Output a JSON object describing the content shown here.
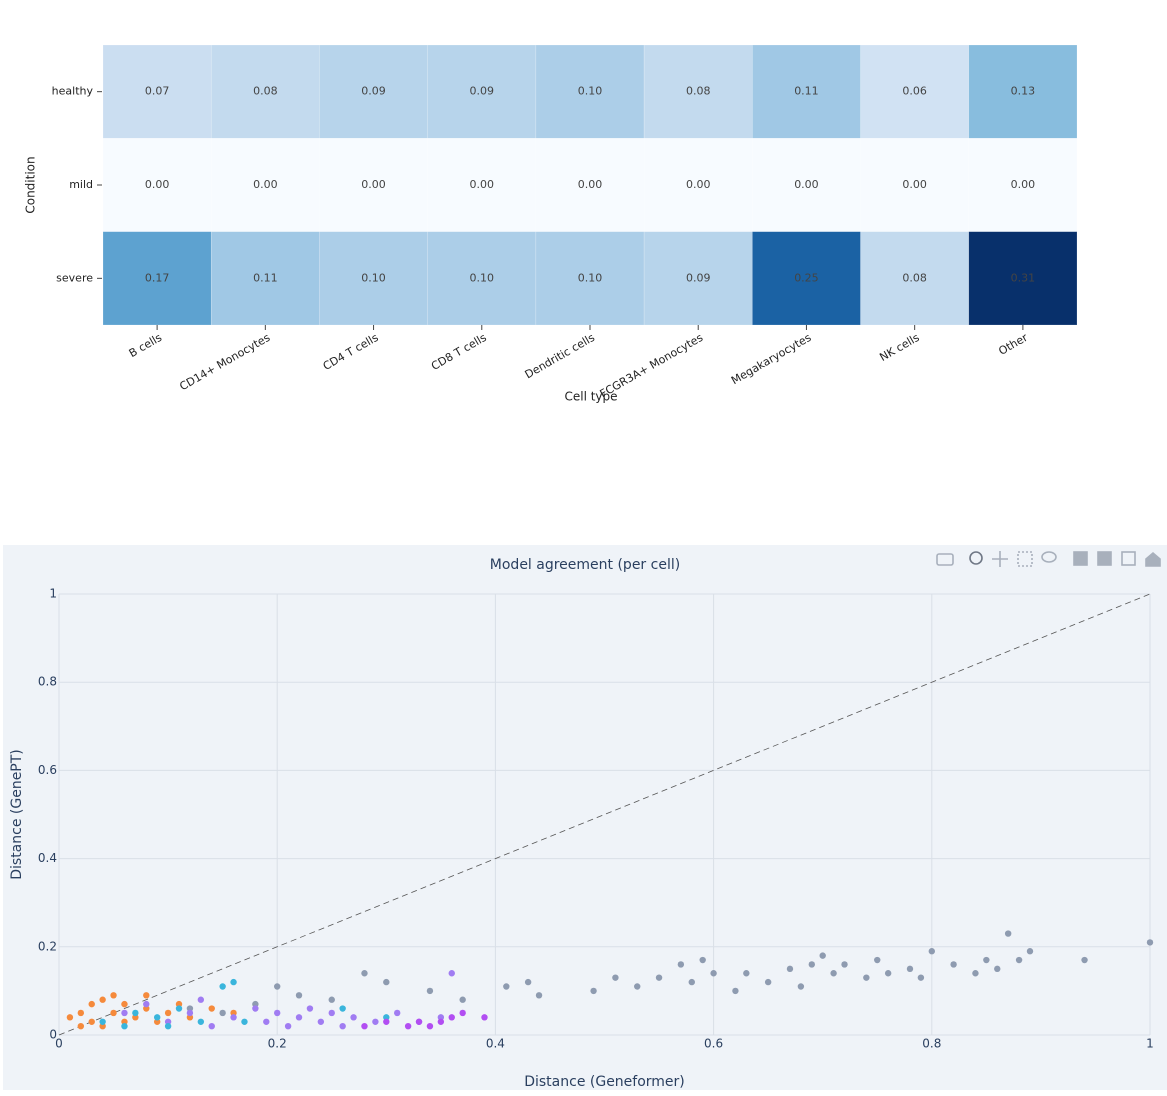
{
  "chart_data": [
    {
      "type": "heatmap",
      "x_label": "Cell type",
      "y_label": "Condition",
      "categories": [
        "B cells",
        "CD14+ Monocytes",
        "CD4 T cells",
        "CD8 T cells",
        "Dendritic cells",
        "FCGR3A+ Monocytes",
        "Megakaryocytes",
        "NK cells",
        "Other"
      ],
      "rows": [
        "healthy",
        "mild",
        "severe"
      ],
      "values": [
        [
          0.07,
          0.08,
          0.09,
          0.09,
          0.1,
          0.08,
          0.11,
          0.06,
          0.13
        ],
        [
          0,
          0,
          0,
          0,
          0,
          0,
          0,
          0,
          0
        ],
        [
          0.17,
          0.11,
          0.1,
          0.1,
          0.1,
          0.09,
          0.25,
          0.08,
          0.31
        ]
      ],
      "value_labels": [
        [
          "0.07",
          "0.08",
          "0.09",
          "0.09",
          "0.10",
          "0.08",
          "0.11",
          "0.06",
          "0.13"
        ],
        [
          "0.00",
          "0.00",
          "0.00",
          "0.00",
          "0.00",
          "0.00",
          "0.00",
          "0.00",
          "0.00"
        ],
        [
          "0.17",
          "0.11",
          "0.10",
          "0.10",
          "0.10",
          "0.09",
          "0.25",
          "0.08",
          "0.31"
        ]
      ],
      "colorscale": [
        "#f7fbff",
        "#c6dbef",
        "#6baed6",
        "#2171b5",
        "#08306b"
      ]
    },
    {
      "type": "scatter",
      "title": "Model agreement (per cell)",
      "x_label": "Distance (Geneformer)",
      "y_label": "Distance (GenePT)",
      "xlim": [
        0,
        1
      ],
      "ylim": [
        0,
        1
      ],
      "xticks": [
        0,
        0.2,
        0.4,
        0.6,
        0.8,
        1
      ],
      "yticks": [
        0,
        0.2,
        0.4,
        0.6,
        0.8,
        1
      ],
      "grid": true,
      "diagonal": true,
      "series": [
        {
          "color": "#8e9bb0",
          "x": [
            0.2,
            0.22,
            0.25,
            0.28,
            0.3,
            0.34,
            0.37,
            0.41,
            0.43,
            0.44,
            0.49,
            0.51,
            0.53,
            0.55,
            0.57,
            0.58,
            0.59,
            0.6,
            0.62,
            0.63,
            0.65,
            0.67,
            0.68,
            0.69,
            0.7,
            0.71,
            0.72,
            0.74,
            0.75,
            0.76,
            0.78,
            0.79,
            0.8,
            0.82,
            0.84,
            0.85,
            0.86,
            0.87,
            0.88,
            0.89,
            0.94,
            1.0,
            0.12,
            0.15,
            0.18
          ],
          "y": [
            0.11,
            0.09,
            0.08,
            0.14,
            0.12,
            0.1,
            0.08,
            0.11,
            0.12,
            0.09,
            0.1,
            0.13,
            0.11,
            0.13,
            0.16,
            0.12,
            0.17,
            0.14,
            0.1,
            0.14,
            0.12,
            0.15,
            0.11,
            0.16,
            0.18,
            0.14,
            0.16,
            0.13,
            0.17,
            0.14,
            0.15,
            0.13,
            0.19,
            0.16,
            0.14,
            0.17,
            0.15,
            0.23,
            0.17,
            0.19,
            0.17,
            0.21,
            0.06,
            0.05,
            0.07
          ]
        },
        {
          "color": "#f58a3c",
          "x": [
            0.01,
            0.02,
            0.03,
            0.03,
            0.04,
            0.04,
            0.05,
            0.06,
            0.06,
            0.07,
            0.08,
            0.08,
            0.09,
            0.1,
            0.11,
            0.12,
            0.14,
            0.16,
            0.02,
            0.05
          ],
          "y": [
            0.04,
            0.05,
            0.03,
            0.07,
            0.02,
            0.08,
            0.05,
            0.03,
            0.07,
            0.04,
            0.06,
            0.09,
            0.03,
            0.05,
            0.07,
            0.04,
            0.06,
            0.05,
            0.02,
            0.09
          ]
        },
        {
          "color": "#a07cf2",
          "x": [
            0.1,
            0.12,
            0.14,
            0.16,
            0.18,
            0.19,
            0.2,
            0.21,
            0.22,
            0.23,
            0.24,
            0.25,
            0.26,
            0.27,
            0.29,
            0.31,
            0.33,
            0.35,
            0.36,
            0.13,
            0.08,
            0.06
          ],
          "y": [
            0.03,
            0.05,
            0.02,
            0.04,
            0.06,
            0.03,
            0.05,
            0.02,
            0.04,
            0.06,
            0.03,
            0.05,
            0.02,
            0.04,
            0.03,
            0.05,
            0.03,
            0.04,
            0.14,
            0.08,
            0.07,
            0.05
          ]
        },
        {
          "color": "#3ab5dc",
          "x": [
            0.04,
            0.06,
            0.07,
            0.09,
            0.1,
            0.11,
            0.13,
            0.15,
            0.16,
            0.17,
            0.26,
            0.3
          ],
          "y": [
            0.03,
            0.02,
            0.05,
            0.04,
            0.02,
            0.06,
            0.03,
            0.11,
            0.12,
            0.03,
            0.06,
            0.04
          ]
        },
        {
          "color": "#b24ef2",
          "x": [
            0.28,
            0.3,
            0.32,
            0.33,
            0.34,
            0.35,
            0.36,
            0.37,
            0.39
          ],
          "y": [
            0.02,
            0.03,
            0.02,
            0.03,
            0.02,
            0.03,
            0.04,
            0.05,
            0.04
          ]
        }
      ]
    }
  ]
}
